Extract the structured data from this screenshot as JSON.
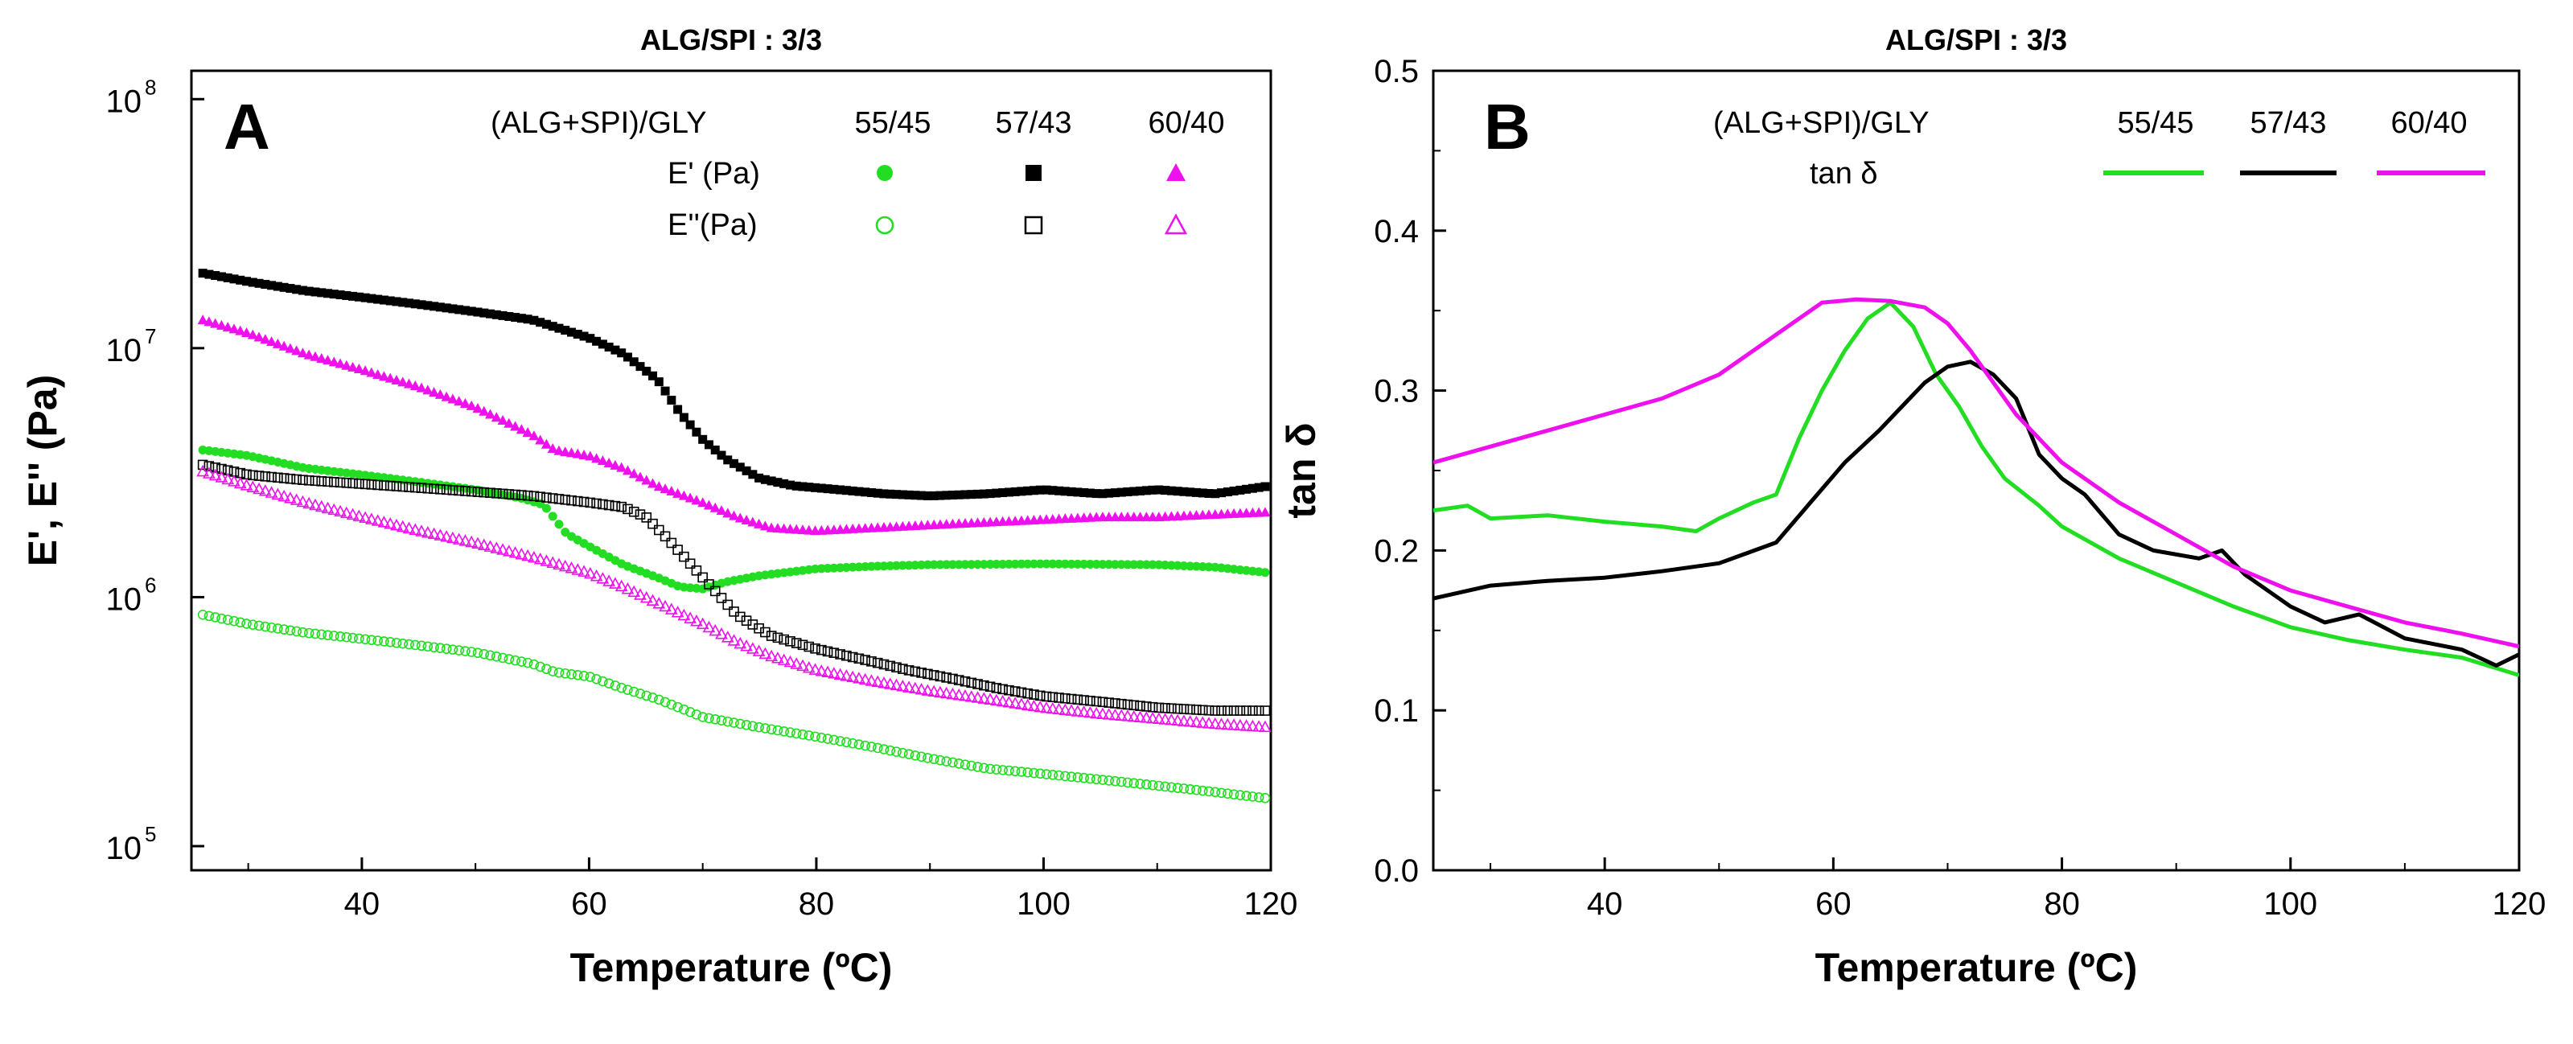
{
  "colors": {
    "green": "#22dd22",
    "black": "#000000",
    "magenta": "#ee11ee"
  },
  "chart_data": [
    {
      "type": "scatter",
      "panel": "A",
      "title": "ALG/SPI : 3/3",
      "xlabel": "Temperature (ºC)",
      "ylabel": "E', E'' (Pa)",
      "xlim": [
        25,
        120
      ],
      "ylim": [
        80000,
        130000000
      ],
      "yscale": "log",
      "xticks": [
        40,
        60,
        80,
        100,
        120
      ],
      "xtick_labels": [
        "40",
        "60",
        "80",
        "100",
        "120"
      ],
      "yticks": [
        100000,
        1000000,
        10000000,
        100000000
      ],
      "ytick_labels": [
        {
          "base": "10",
          "exp": "5"
        },
        {
          "base": "10",
          "exp": "6"
        },
        {
          "base": "10",
          "exp": "7"
        },
        {
          "base": "10",
          "exp": "8"
        }
      ],
      "legend": {
        "header": "(ALG+SPI)/GLY",
        "columns": [
          "55/45",
          "57/43",
          "60/40"
        ],
        "rows": [
          "E' (Pa)",
          "E''(Pa)"
        ]
      },
      "series": [
        {
          "name": "E' 55/45",
          "color": "green",
          "marker": "circle-filled",
          "points": [
            [
              26,
              3900000.0
            ],
            [
              30,
              3700000.0
            ],
            [
              35,
              3300000.0
            ],
            [
              40,
              3100000.0
            ],
            [
              45,
              2900000.0
            ],
            [
              50,
              2700000.0
            ],
            [
              54,
              2500000.0
            ],
            [
              56,
              2350000.0
            ],
            [
              58,
              1800000.0
            ],
            [
              60,
              1600000.0
            ],
            [
              63,
              1350000.0
            ],
            [
              66,
              1200000.0
            ],
            [
              68,
              1100000.0
            ],
            [
              70,
              1080000.0
            ],
            [
              72,
              1150000.0
            ],
            [
              75,
              1220000.0
            ],
            [
              80,
              1300000.0
            ],
            [
              85,
              1330000.0
            ],
            [
              90,
              1350000.0
            ],
            [
              100,
              1360000.0
            ],
            [
              110,
              1350000.0
            ],
            [
              115,
              1320000.0
            ],
            [
              120,
              1250000.0
            ]
          ]
        },
        {
          "name": "E' 57/43",
          "color": "black",
          "marker": "square-filled",
          "points": [
            [
              26,
              20000000.0
            ],
            [
              30,
              18500000.0
            ],
            [
              35,
              17000000.0
            ],
            [
              40,
              16000000.0
            ],
            [
              45,
              15000000.0
            ],
            [
              50,
              14000000.0
            ],
            [
              55,
              13000000.0
            ],
            [
              60,
              11000000.0
            ],
            [
              63,
              9500000.0
            ],
            [
              66,
              7500000.0
            ],
            [
              68,
              5500000.0
            ],
            [
              70,
              4300000.0
            ],
            [
              72,
              3600000.0
            ],
            [
              75,
              3000000.0
            ],
            [
              78,
              2800000.0
            ],
            [
              82,
              2700000.0
            ],
            [
              86,
              2600000.0
            ],
            [
              90,
              2550000.0
            ],
            [
              95,
              2600000.0
            ],
            [
              100,
              2700000.0
            ],
            [
              105,
              2600000.0
            ],
            [
              110,
              2700000.0
            ],
            [
              115,
              2600000.0
            ],
            [
              120,
              2800000.0
            ]
          ]
        },
        {
          "name": "E' 60/40",
          "color": "magenta",
          "marker": "triangle-filled",
          "points": [
            [
              26,
              13000000.0
            ],
            [
              30,
              11500000.0
            ],
            [
              35,
              9500000.0
            ],
            [
              40,
              8200000.0
            ],
            [
              45,
              7000000.0
            ],
            [
              50,
              5800000.0
            ],
            [
              55,
              4500000.0
            ],
            [
              57,
              3900000.0
            ],
            [
              60,
              3700000.0
            ],
            [
              63,
              3300000.0
            ],
            [
              66,
              2800000.0
            ],
            [
              70,
              2400000.0
            ],
            [
              73,
              2100000.0
            ],
            [
              76,
              1900000.0
            ],
            [
              80,
              1850000.0
            ],
            [
              85,
              1900000.0
            ],
            [
              90,
              1950000.0
            ],
            [
              95,
              2000000.0
            ],
            [
              100,
              2050000.0
            ],
            [
              105,
              2100000.0
            ],
            [
              110,
              2100000.0
            ],
            [
              115,
              2150000.0
            ],
            [
              120,
              2200000.0
            ]
          ]
        },
        {
          "name": "E'' 55/45",
          "color": "green",
          "marker": "circle-open",
          "points": [
            [
              26,
              850000.0
            ],
            [
              30,
              780000.0
            ],
            [
              35,
              720000.0
            ],
            [
              40,
              680000.0
            ],
            [
              45,
              640000.0
            ],
            [
              50,
              600000.0
            ],
            [
              55,
              540000.0
            ],
            [
              57,
              500000.0
            ],
            [
              60,
              480000.0
            ],
            [
              63,
              430000.0
            ],
            [
              66,
              390000.0
            ],
            [
              70,
              330000.0
            ],
            [
              75,
              300000.0
            ],
            [
              80,
              275000.0
            ],
            [
              85,
              250000.0
            ],
            [
              90,
              225000.0
            ],
            [
              95,
              205000.0
            ],
            [
              100,
              195000.0
            ],
            [
              105,
              185000.0
            ],
            [
              110,
              175000.0
            ],
            [
              115,
              165000.0
            ],
            [
              120,
              155000.0
            ]
          ]
        },
        {
          "name": "E'' 57/43",
          "color": "black",
          "marker": "square-open",
          "points": [
            [
              26,
              3400000.0
            ],
            [
              30,
              3100000.0
            ],
            [
              35,
              2950000.0
            ],
            [
              40,
              2850000.0
            ],
            [
              45,
              2750000.0
            ],
            [
              50,
              2650000.0
            ],
            [
              55,
              2550000.0
            ],
            [
              60,
              2400000.0
            ],
            [
              63,
              2300000.0
            ],
            [
              65,
              2100000.0
            ],
            [
              67,
              1700000.0
            ],
            [
              70,
              1200000.0
            ],
            [
              73,
              850000.0
            ],
            [
              76,
              700000.0
            ],
            [
              80,
              620000.0
            ],
            [
              85,
              550000.0
            ],
            [
              88,
              510000.0
            ],
            [
              92,
              470000.0
            ],
            [
              96,
              430000.0
            ],
            [
              100,
              400000.0
            ],
            [
              105,
              380000.0
            ],
            [
              110,
              360000.0
            ],
            [
              115,
              350000.0
            ],
            [
              120,
              350000.0
            ]
          ]
        },
        {
          "name": "E'' 60/40",
          "color": "magenta",
          "marker": "triangle-open",
          "points": [
            [
              26,
              3200000.0
            ],
            [
              30,
              2800000.0
            ],
            [
              35,
              2400000.0
            ],
            [
              40,
              2100000.0
            ],
            [
              45,
              1850000.0
            ],
            [
              50,
              1650000.0
            ],
            [
              55,
              1450000.0
            ],
            [
              60,
              1250000.0
            ],
            [
              63,
              1100000.0
            ],
            [
              66,
              950000.0
            ],
            [
              70,
              780000.0
            ],
            [
              73,
              660000.0
            ],
            [
              76,
              580000.0
            ],
            [
              80,
              510000.0
            ],
            [
              85,
              460000.0
            ],
            [
              90,
              420000.0
            ],
            [
              95,
              390000.0
            ],
            [
              100,
              360000.0
            ],
            [
              105,
              340000.0
            ],
            [
              110,
              325000.0
            ],
            [
              115,
              310000.0
            ],
            [
              120,
              300000.0
            ]
          ]
        }
      ]
    },
    {
      "type": "line",
      "panel": "B",
      "title": "ALG/SPI : 3/3",
      "xlabel": "Temperature (ºC)",
      "ylabel": "tan δ",
      "xlim": [
        25,
        120
      ],
      "ylim": [
        0.0,
        0.5
      ],
      "xticks": [
        40,
        60,
        80,
        100,
        120
      ],
      "xtick_labels": [
        "40",
        "60",
        "80",
        "100",
        "120"
      ],
      "yticks": [
        0.0,
        0.1,
        0.2,
        0.3,
        0.4,
        0.5
      ],
      "ytick_labels": [
        "0.0",
        "0.1",
        "0.2",
        "0.3",
        "0.4",
        "0.5"
      ],
      "legend": {
        "header": "(ALG+SPI)/GLY",
        "sublabel": "tan δ",
        "columns": [
          "55/45",
          "57/43",
          "60/40"
        ]
      },
      "series": [
        {
          "name": "55/45",
          "color": "green",
          "points": [
            [
              25,
              0.225
            ],
            [
              28,
              0.228
            ],
            [
              30,
              0.22
            ],
            [
              35,
              0.222
            ],
            [
              40,
              0.218
            ],
            [
              45,
              0.215
            ],
            [
              48,
              0.212
            ],
            [
              50,
              0.22
            ],
            [
              53,
              0.23
            ],
            [
              55,
              0.235
            ],
            [
              57,
              0.27
            ],
            [
              59,
              0.3
            ],
            [
              61,
              0.325
            ],
            [
              63,
              0.345
            ],
            [
              65,
              0.355
            ],
            [
              67,
              0.34
            ],
            [
              69,
              0.31
            ],
            [
              71,
              0.29
            ],
            [
              73,
              0.265
            ],
            [
              75,
              0.245
            ],
            [
              78,
              0.228
            ],
            [
              80,
              0.215
            ],
            [
              85,
              0.195
            ],
            [
              90,
              0.18
            ],
            [
              95,
              0.165
            ],
            [
              100,
              0.152
            ],
            [
              105,
              0.144
            ],
            [
              110,
              0.138
            ],
            [
              115,
              0.133
            ],
            [
              120,
              0.122
            ]
          ]
        },
        {
          "name": "57/43",
          "color": "black",
          "points": [
            [
              25,
              0.17
            ],
            [
              30,
              0.178
            ],
            [
              35,
              0.181
            ],
            [
              40,
              0.183
            ],
            [
              45,
              0.187
            ],
            [
              50,
              0.192
            ],
            [
              55,
              0.205
            ],
            [
              58,
              0.23
            ],
            [
              61,
              0.255
            ],
            [
              64,
              0.275
            ],
            [
              66,
              0.29
            ],
            [
              68,
              0.305
            ],
            [
              70,
              0.315
            ],
            [
              72,
              0.318
            ],
            [
              74,
              0.31
            ],
            [
              76,
              0.295
            ],
            [
              78,
              0.26
            ],
            [
              80,
              0.245
            ],
            [
              82,
              0.235
            ],
            [
              85,
              0.21
            ],
            [
              88,
              0.2
            ],
            [
              92,
              0.195
            ],
            [
              94,
              0.2
            ],
            [
              96,
              0.185
            ],
            [
              100,
              0.165
            ],
            [
              103,
              0.155
            ],
            [
              106,
              0.16
            ],
            [
              110,
              0.145
            ],
            [
              115,
              0.138
            ],
            [
              118,
              0.128
            ],
            [
              120,
              0.135
            ]
          ]
        },
        {
          "name": "60/40",
          "color": "magenta",
          "points": [
            [
              25,
              0.255
            ],
            [
              30,
              0.265
            ],
            [
              35,
              0.275
            ],
            [
              40,
              0.285
            ],
            [
              45,
              0.295
            ],
            [
              50,
              0.31
            ],
            [
              53,
              0.325
            ],
            [
              56,
              0.34
            ],
            [
              59,
              0.355
            ],
            [
              62,
              0.357
            ],
            [
              65,
              0.356
            ],
            [
              68,
              0.352
            ],
            [
              70,
              0.342
            ],
            [
              72,
              0.325
            ],
            [
              74,
              0.305
            ],
            [
              76,
              0.285
            ],
            [
              80,
              0.255
            ],
            [
              85,
              0.23
            ],
            [
              90,
              0.21
            ],
            [
              95,
              0.19
            ],
            [
              100,
              0.175
            ],
            [
              105,
              0.165
            ],
            [
              110,
              0.155
            ],
            [
              115,
              0.148
            ],
            [
              120,
              0.14
            ]
          ]
        }
      ]
    }
  ]
}
